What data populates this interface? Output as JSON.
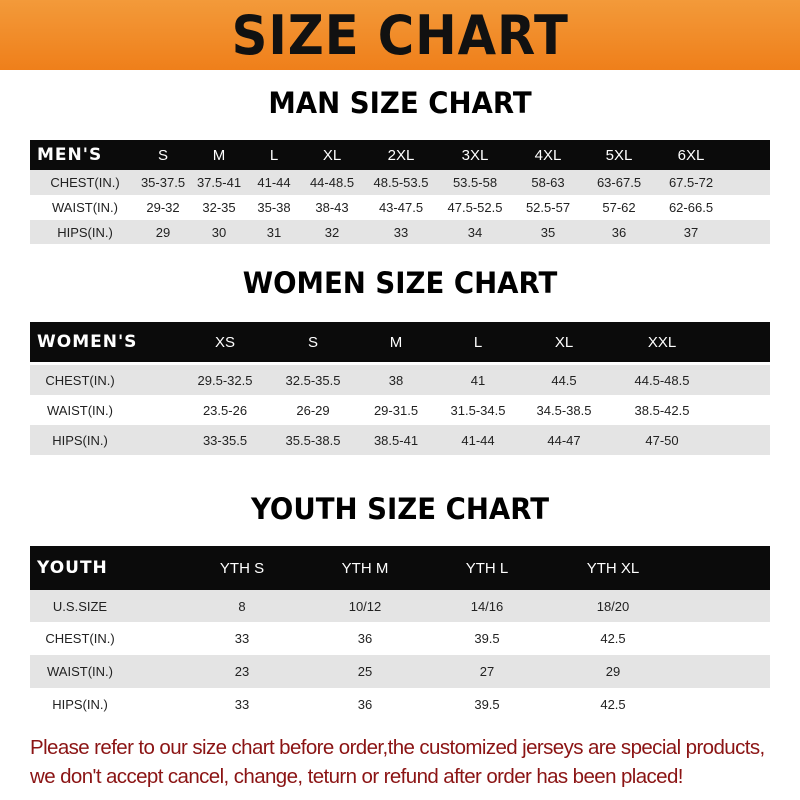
{
  "banner_title": "SIZE CHART",
  "men": {
    "title": "MAN SIZE CHART",
    "header": [
      "MEN'S",
      "S",
      "M",
      "L",
      "XL",
      "2XL",
      "3XL",
      "4XL",
      "5XL",
      "6XL"
    ],
    "rows": [
      [
        "CHEST(IN.)",
        "35-37.5",
        "37.5-41",
        "41-44",
        "44-48.5",
        "48.5-53.5",
        "53.5-58",
        "58-63",
        "63-67.5",
        "67.5-72"
      ],
      [
        "WAIST(IN.)",
        "29-32",
        "32-35",
        "35-38",
        "38-43",
        "43-47.5",
        "47.5-52.5",
        "52.5-57",
        "57-62",
        "62-66.5"
      ],
      [
        "HIPS(IN.)",
        "29",
        "30",
        "31",
        "32",
        "33",
        "34",
        "35",
        "36",
        "37"
      ]
    ]
  },
  "women": {
    "title": "WOMEN SIZE CHART",
    "header": [
      "WOMEN'S",
      "XS",
      "S",
      "M",
      "L",
      "XL",
      "XXL"
    ],
    "rows": [
      [
        "CHEST(IN.)",
        "29.5-32.5",
        "32.5-35.5",
        "38",
        "41",
        "44.5",
        "44.5-48.5"
      ],
      [
        "WAIST(IN.)",
        "23.5-26",
        "26-29",
        "29-31.5",
        "31.5-34.5",
        "34.5-38.5",
        "38.5-42.5"
      ],
      [
        "HIPS(IN.)",
        "33-35.5",
        "35.5-38.5",
        "38.5-41",
        "41-44",
        "44-47",
        "47-50"
      ]
    ]
  },
  "youth": {
    "title": "YOUTH SIZE CHART",
    "header": [
      "YOUTH",
      "YTH S",
      "YTH M",
      "YTH L",
      "YTH XL"
    ],
    "rows": [
      [
        "U.S.SIZE",
        "8",
        "10/12",
        "14/16",
        "18/20"
      ],
      [
        "CHEST(IN.)",
        "33",
        "36",
        "39.5",
        "42.5"
      ],
      [
        "WAIST(IN.)",
        "23",
        "25",
        "27",
        "29"
      ],
      [
        "HIPS(IN.)",
        "33",
        "36",
        "39.5",
        "42.5"
      ]
    ]
  },
  "note": "Please refer to our size chart before order,the customized jerseys are special products, we don't accept cancel, change, teturn or refund after order has been placed!",
  "colors": {
    "banner": "#ef8a25",
    "header_row": "#0b0b0b",
    "stripe": "#e4e4e4",
    "note": "#8b1414"
  }
}
